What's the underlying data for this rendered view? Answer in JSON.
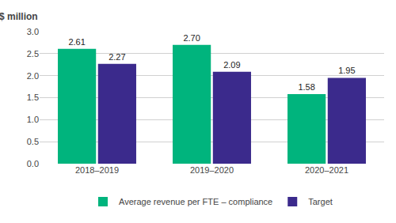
{
  "chart_data": {
    "type": "bar",
    "ylabel": "$ million",
    "categories": [
      "2018–2019",
      "2019–2020",
      "2020–2021"
    ],
    "series": [
      {
        "name": "Average revenue per FTE – compliance",
        "color": "#00b47d",
        "values": [
          2.61,
          2.7,
          1.58
        ],
        "value_labels": [
          "2.61",
          "2.70",
          "1.58"
        ]
      },
      {
        "name": "Target",
        "color": "#3b2a8c",
        "values": [
          2.27,
          2.09,
          1.95
        ],
        "value_labels": [
          "2.27",
          "2.09",
          "1.95"
        ]
      }
    ],
    "ylim": [
      0.0,
      3.0
    ],
    "yticks": [
      {
        "value": 0.0,
        "label": "0.0"
      },
      0.5,
      {
        "value": 1.0,
        "label": "1.0"
      },
      1.5,
      {
        "value": 2.0,
        "label": "2.0"
      },
      2.5,
      {
        "value": 3.0,
        "label": "3.0"
      }
    ],
    "grid": true,
    "legend": "bottom",
    "data_labels": true
  }
}
